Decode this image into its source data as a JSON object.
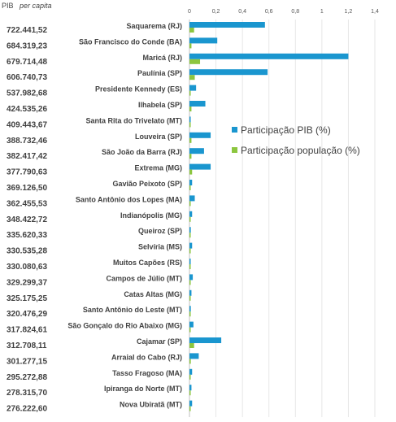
{
  "header": {
    "prefix": "PIB",
    "suffix": "per capita"
  },
  "chart_data": {
    "type": "bar",
    "orientation": "horizontal",
    "xlim": [
      0,
      1.4
    ],
    "x_ticks": [
      "0",
      "0,2",
      "0,4",
      "0,6",
      "0,8",
      "1",
      "1,2",
      "1,4"
    ],
    "x_tick_values": [
      0,
      0.2,
      0.4,
      0.6,
      0.8,
      1.0,
      1.2,
      1.4
    ],
    "grid": true,
    "legend_position": "center-right",
    "categories": [
      "Saquarema (RJ)",
      "São Francisco do Conde (BA)",
      "Maricá (RJ)",
      "Paulínia (SP)",
      "Presidente Kennedy (ES)",
      "Ilhabela (SP)",
      "Santa Rita do Trivelato (MT)",
      "Louveira (SP)",
      "São João da Barra (RJ)",
      "Extrema (MG)",
      "Gavião Peixoto (SP)",
      "Santo Antônio dos Lopes (MA)",
      "Indianópolis (MG)",
      "Queiroz (SP)",
      "Selvíria (MS)",
      "Muitos Capões (RS)",
      "Campos de Júlio (MT)",
      "Catas Altas (MG)",
      "Santo Antônio do Leste (MT)",
      "São Gonçalo do Rio Abaixo (MG)",
      "Cajamar (SP)",
      "Arraial do Cabo (RJ)",
      "Tasso Fragoso (MA)",
      "Ipiranga do Norte (MT)",
      "Nova Ubiratã (MT)"
    ],
    "pib_per_capita": [
      "722.441,52",
      "684.319,23",
      "679.714,48",
      "606.740,73",
      "537.982,68",
      "424.535,26",
      "409.443,67",
      "388.732,46",
      "382.417,42",
      "377.790,63",
      "369.126,50",
      "362.455,53",
      "348.422,72",
      "335.620,33",
      "330.535,28",
      "330.080,63",
      "329.299,37",
      "325.175,25",
      "320.476,29",
      "317.824,61",
      "312.708,11",
      "301.277,15",
      "295.272,88",
      "278.315,70",
      "276.222,60"
    ],
    "series": [
      {
        "name": "Participação PIB (%)",
        "color": "#1A96CF",
        "values": [
          0.57,
          0.21,
          1.2,
          0.59,
          0.05,
          0.12,
          0.005,
          0.16,
          0.11,
          0.16,
          0.02,
          0.04,
          0.02,
          0.01,
          0.02,
          0.005,
          0.025,
          0.015,
          0.01,
          0.03,
          0.24,
          0.07,
          0.02,
          0.015,
          0.02
        ]
      },
      {
        "name": "Participação população (%)",
        "color": "#8CC63F",
        "values": [
          0.035,
          0.015,
          0.08,
          0.04,
          0.005,
          0.015,
          0.002,
          0.015,
          0.015,
          0.02,
          0.002,
          0.005,
          0.002,
          0.002,
          0.003,
          0.002,
          0.002,
          0.002,
          0.002,
          0.005,
          0.035,
          0.01,
          0.002,
          0.002,
          0.002
        ]
      }
    ]
  }
}
